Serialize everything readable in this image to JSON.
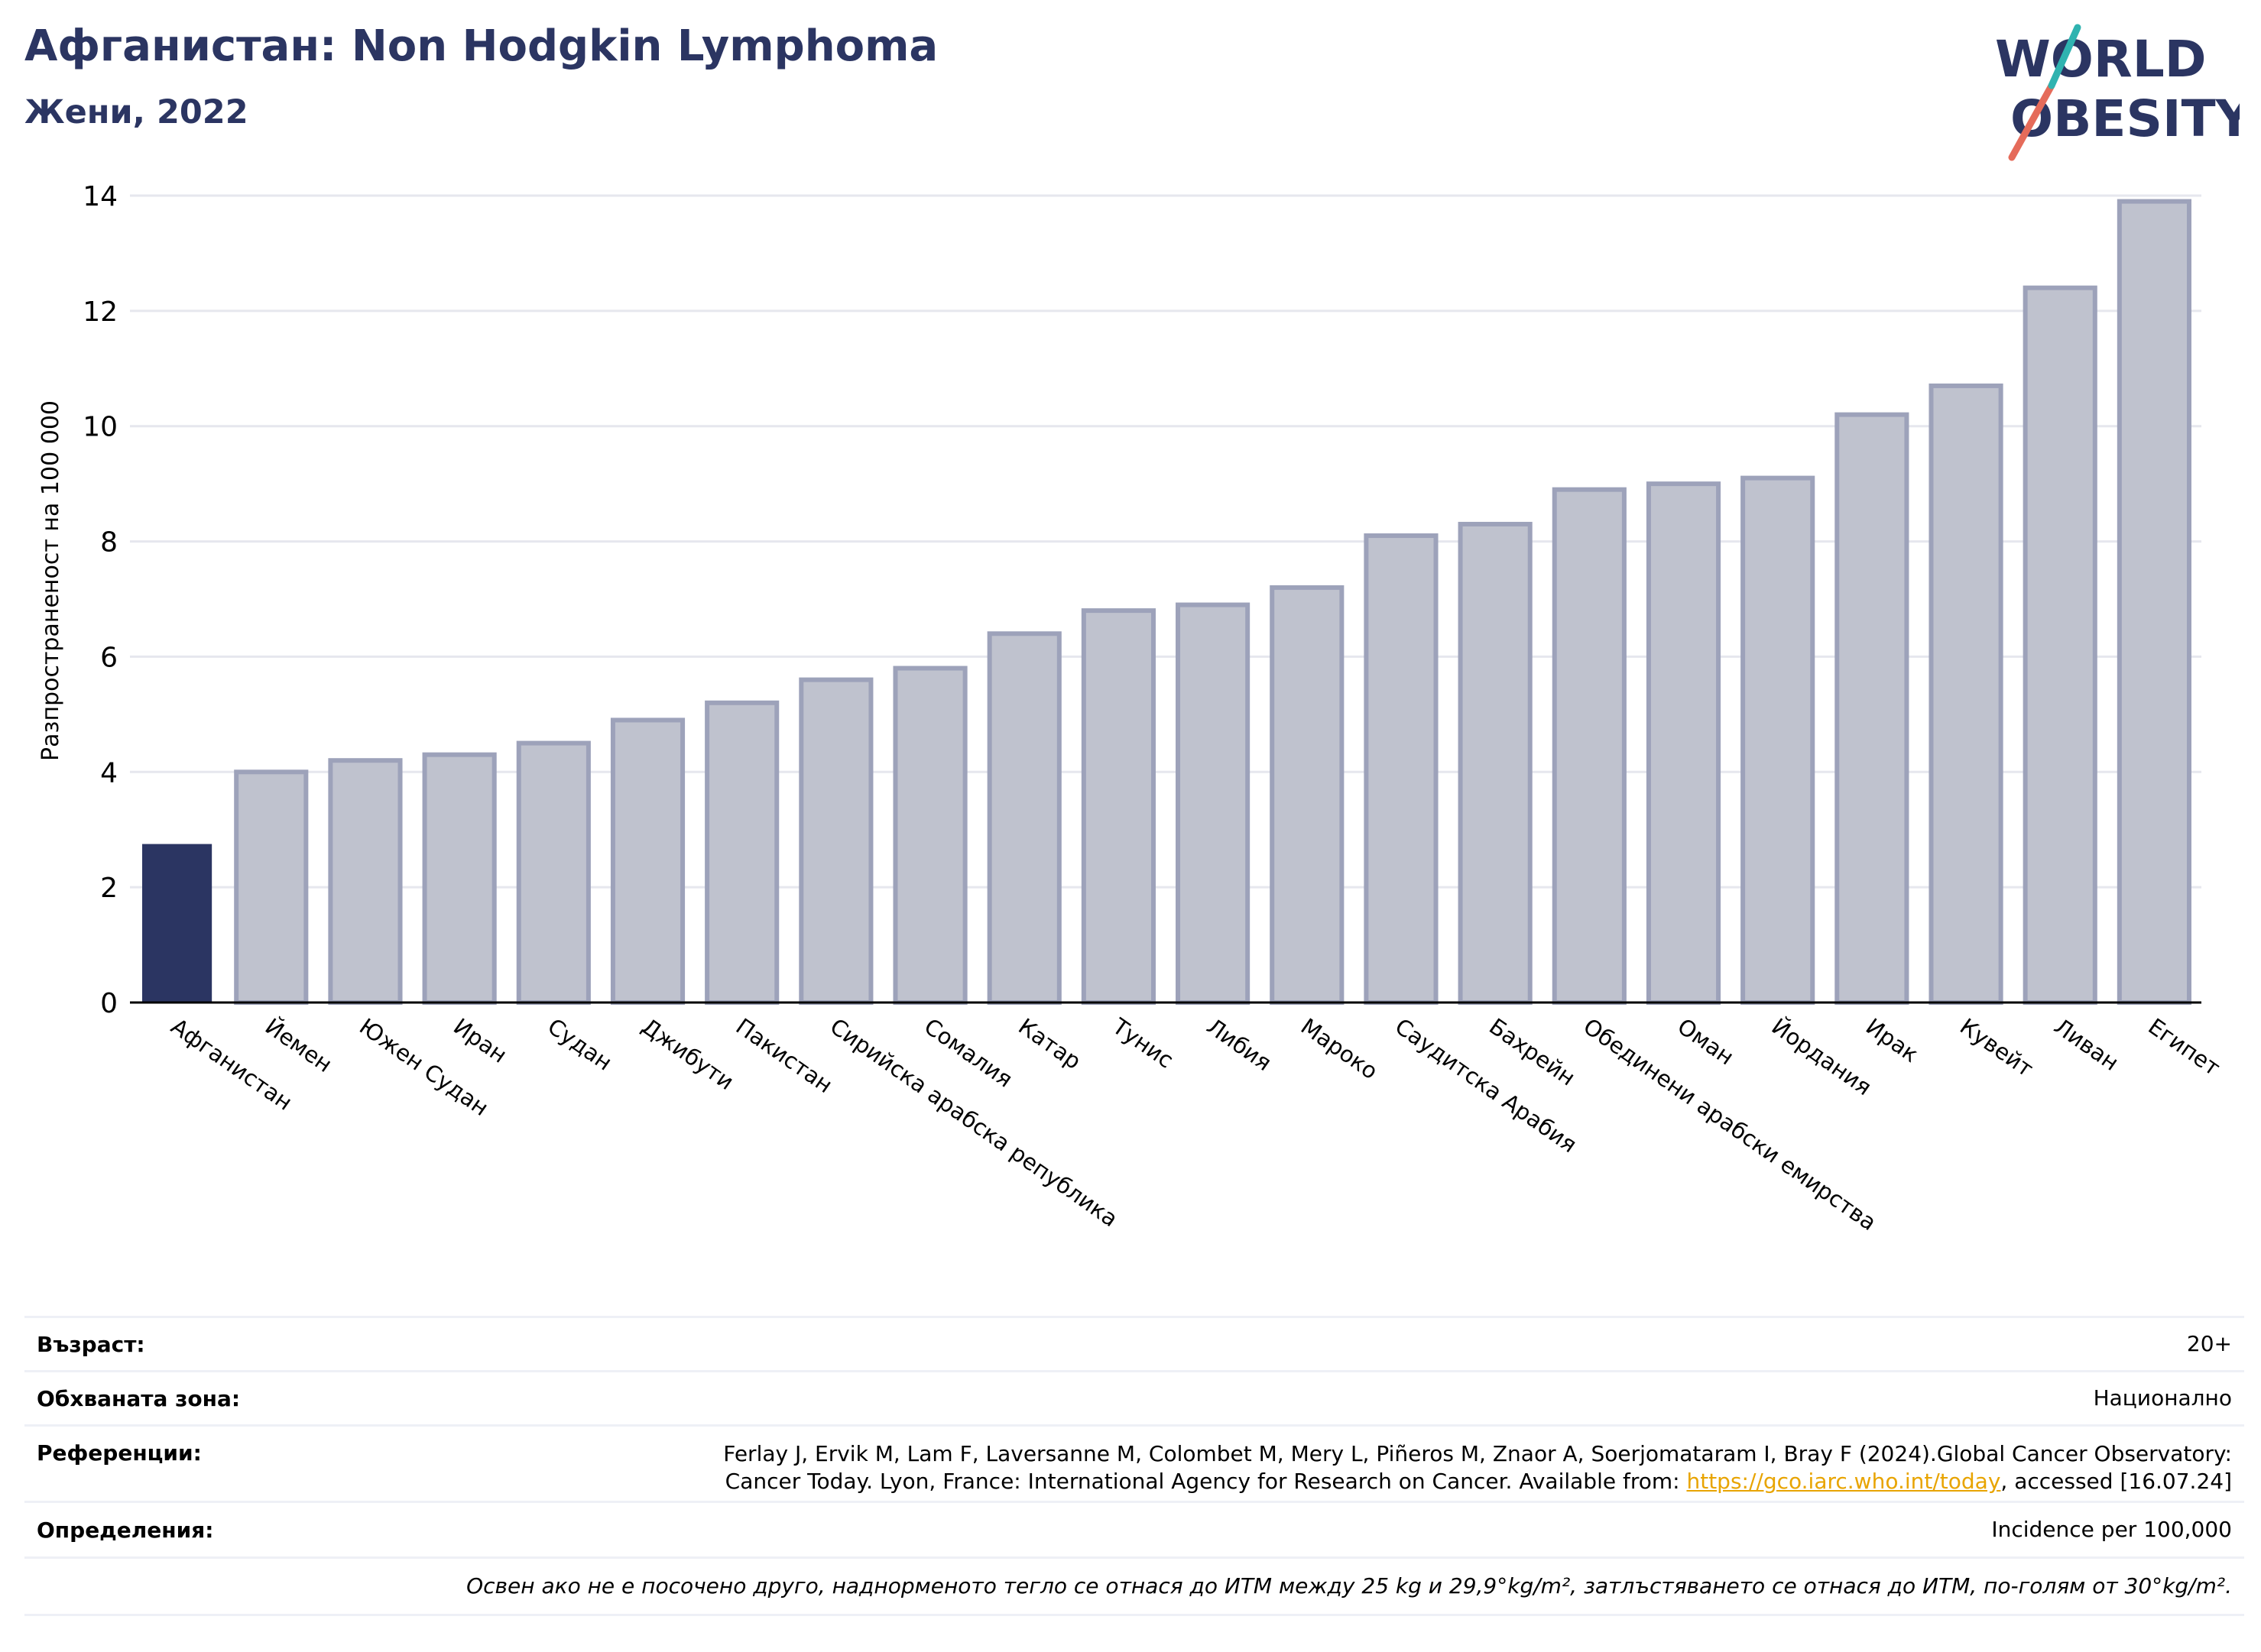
{
  "header": {
    "title": "Афганистан: Non Hodgkin Lymphoma",
    "subtitle": "Жени, 2022"
  },
  "logo": {
    "line1": "WORLD",
    "line2": "OBESITY"
  },
  "chart_data": {
    "type": "bar",
    "title": "Афганистан: Non Hodgkin Lymphoma",
    "subtitle": "Жени, 2022",
    "ylabel": "Разпространеност  на 100 000",
    "xlabel": "",
    "ylim": [
      0,
      14
    ],
    "yticks": [
      0,
      2,
      4,
      6,
      8,
      10,
      12,
      14
    ],
    "grid": true,
    "categories": [
      "Афганистан",
      "Йемен",
      "Южен Судан",
      "Иран",
      "Судан",
      "Джибути",
      "Пакистан",
      "Сирийска арабска република",
      "Сомалия",
      "Катар",
      "Тунис",
      "Либия",
      "Мароко",
      "Саудитска Арабия",
      "Бахрейн",
      "Обединени арабски емирства",
      "Оман",
      "Йордания",
      "Ирак",
      "Кувейт",
      "Ливан",
      "Египет"
    ],
    "values": [
      2.75,
      4.0,
      4.2,
      4.3,
      4.5,
      4.9,
      5.2,
      5.6,
      5.8,
      6.4,
      6.8,
      6.9,
      7.2,
      8.1,
      8.3,
      8.9,
      9.0,
      9.1,
      10.2,
      10.7,
      12.4,
      13.9
    ],
    "highlight": "Афганистан",
    "colors": {
      "highlight": "#2b3562",
      "bar": "#bfc2ce",
      "bar_edge": "#9da2ba"
    }
  },
  "info": {
    "age_label": "Възраст:",
    "age_value": "20+",
    "area_label": "Обхваната зона:",
    "area_value": "Национално",
    "ref_label": "Референции:",
    "ref_line1": "Ferlay J, Ervik M, Lam F, Laversanne M, Colombet M, Mery L, Piñeros M, Znaor A, Soerjomataram I, Bray F (2024).Global Cancer Observatory:",
    "ref_line2_pre": "Cancer Today. Lyon, France: International Agency for Research on Cancer. Available from: ",
    "ref_link": "https://gco.iarc.who.int/today",
    "ref_line2_post": ", accessed [16.07.24]",
    "def_label": "Определения:",
    "def_value": "Incidence per 100,000",
    "note": "Освен ако не е посочено друго, наднорменото тегло се отнася до ИТМ между 25 kg и 29,9°kg/m², затлъстяването се отнася до ИТМ, по-голям от 30°kg/m²."
  }
}
